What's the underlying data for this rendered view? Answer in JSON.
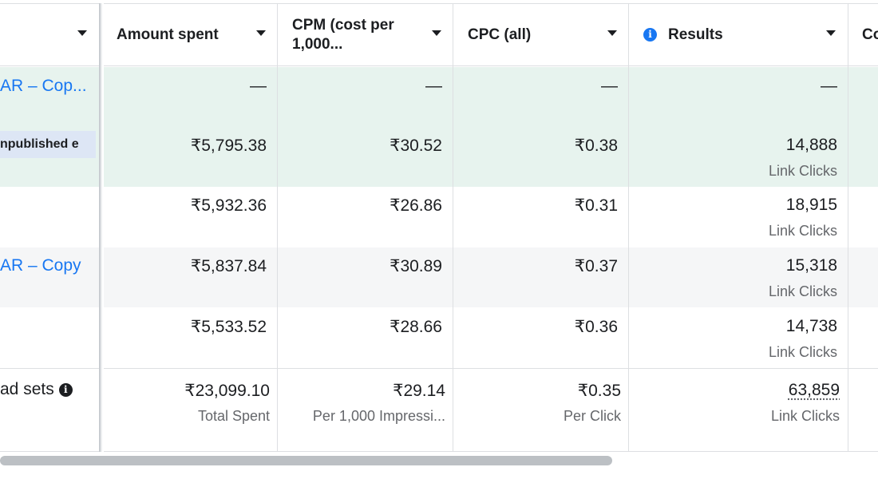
{
  "header": {
    "columns": [
      {
        "label": ""
      },
      {
        "label": "Amount spent"
      },
      {
        "label_line1": "CPM (cost per",
        "label_line2": "1,000..."
      },
      {
        "label": "CPC (all)"
      },
      {
        "label": "Results"
      },
      {
        "label": "Co"
      }
    ]
  },
  "rows": [
    {
      "name": "AR – Cop...",
      "amount": "—",
      "cpm": "—",
      "cpc": "—",
      "results": "—"
    },
    {
      "badge": "npublished e",
      "amount": "₹5,795.38",
      "cpm": "₹30.52",
      "cpc": "₹0.38",
      "results": "14,888",
      "results_sub": "Link Clicks"
    },
    {
      "amount": "₹5,932.36",
      "cpm": "₹26.86",
      "cpc": "₹0.31",
      "results": "18,915",
      "results_sub": "Link Clicks"
    },
    {
      "name": "AR – Copy",
      "amount": "₹5,837.84",
      "cpm": "₹30.89",
      "cpc": "₹0.37",
      "results": "15,318",
      "results_sub": "Link Clicks"
    },
    {
      "amount": "₹5,533.52",
      "cpm": "₹28.66",
      "cpc": "₹0.36",
      "results": "14,738",
      "results_sub": "Link Clicks"
    }
  ],
  "summary": {
    "label": "ad sets",
    "amount": "₹23,099.10",
    "amount_sub": "Total Spent",
    "cpm": "₹29.14",
    "cpm_sub": "Per 1,000 Impressi...",
    "cpc": "₹0.35",
    "cpc_sub": "Per Click",
    "results": "63,859",
    "results_sub": "Link Clicks"
  },
  "icons": {
    "results_info": "info-icon",
    "summary_info": "info-icon"
  },
  "colors": {
    "selected_row": "#e7f3ee",
    "alt_row": "#f5f6f7",
    "link": "#1877f2",
    "secondary_text": "#65676b"
  }
}
